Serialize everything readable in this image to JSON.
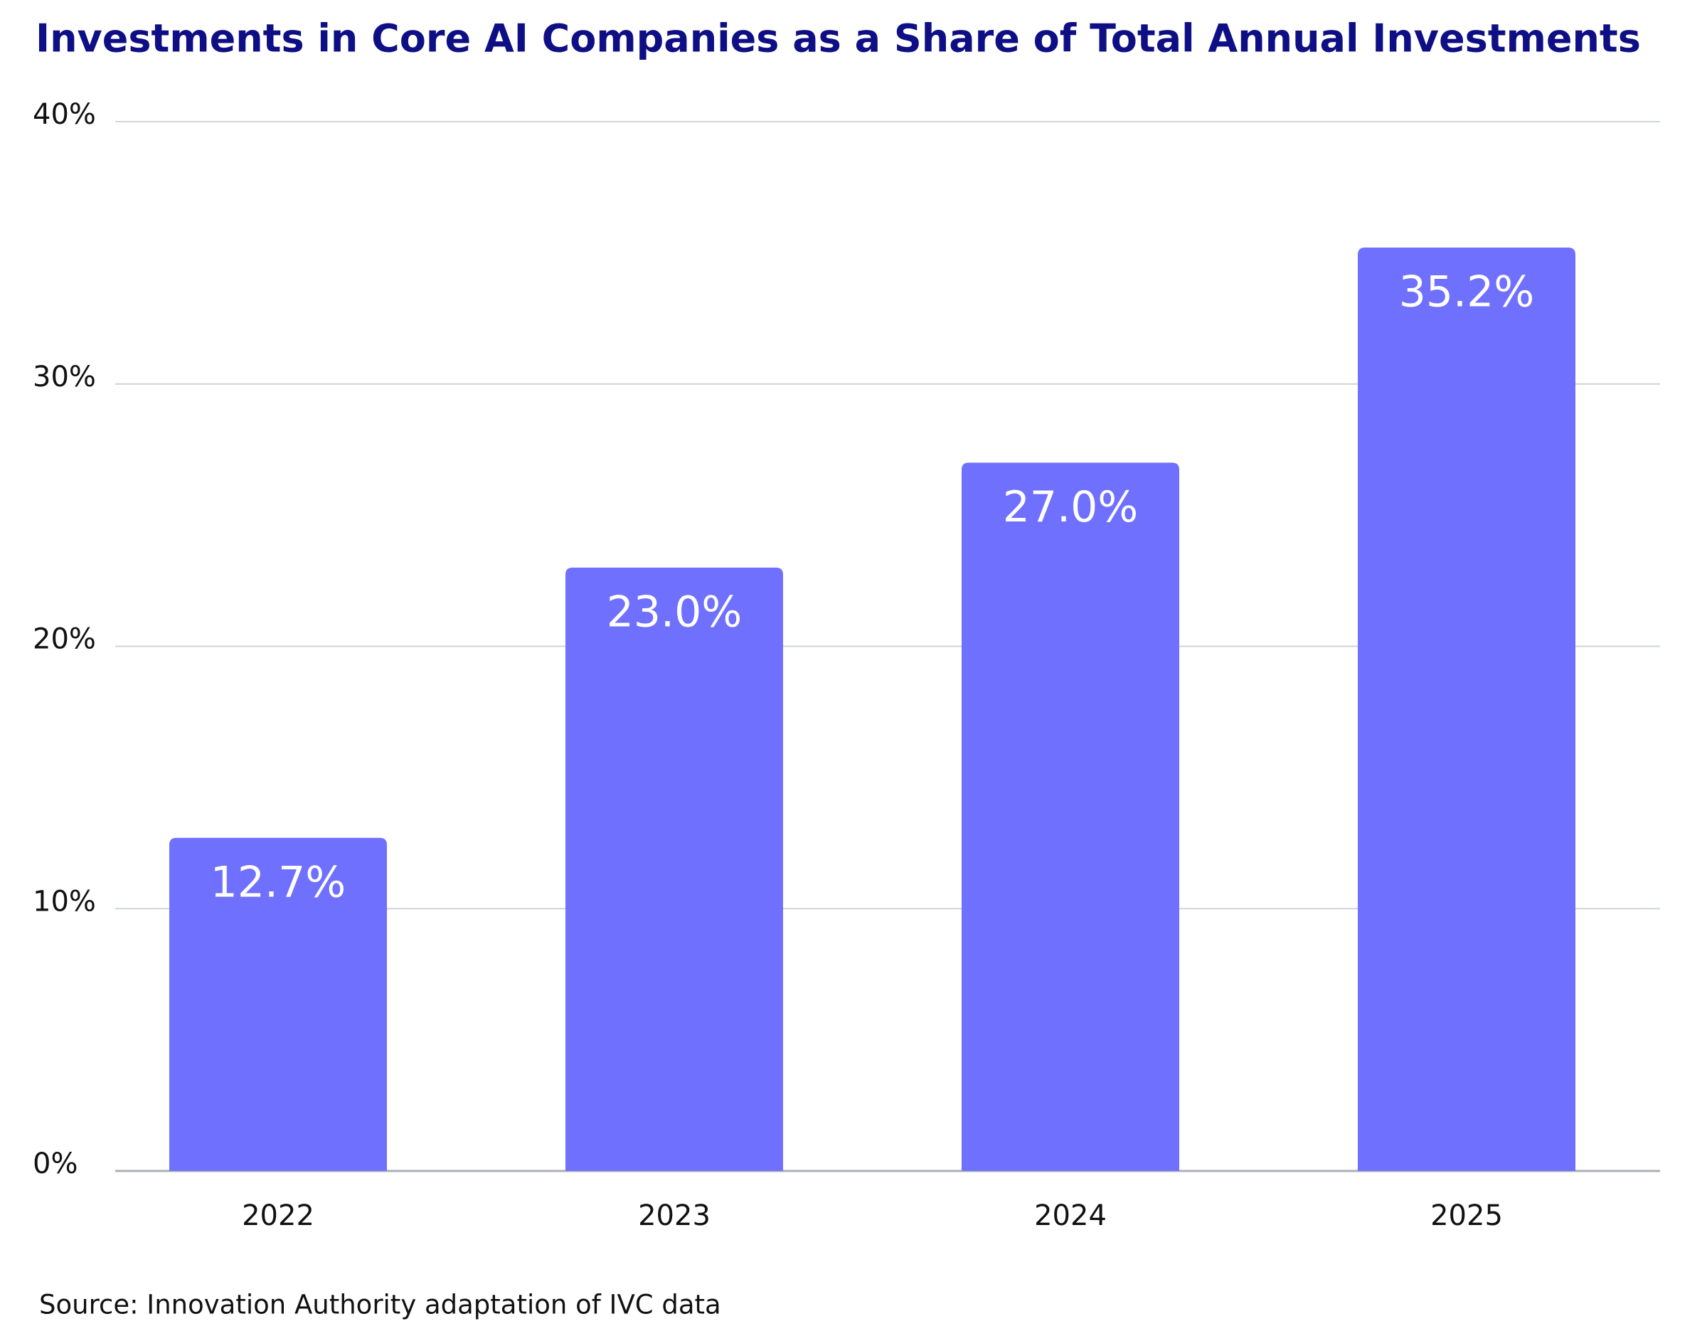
{
  "chart_data": {
    "type": "bar",
    "title": "Investments in Core AI Companies as a Share of Total Annual Investments",
    "categories": [
      "2022",
      "2023",
      "2024",
      "2025"
    ],
    "values": [
      12.7,
      23.0,
      27.0,
      35.2
    ],
    "value_labels": [
      "12.7%",
      "23.0%",
      "27.0%",
      "35.2%"
    ],
    "color": "#7070ff",
    "ylim": [
      0,
      40
    ],
    "yticks": [
      {
        "value": 0,
        "label": "0%"
      },
      {
        "value": 10,
        "label": "10%"
      },
      {
        "value": 20,
        "label": "20%"
      },
      {
        "value": 30,
        "label": "30%"
      },
      {
        "value": 40,
        "label": "40%"
      }
    ],
    "grid": true,
    "source": "Source: Innovation Authority adaptation of IVC data"
  }
}
